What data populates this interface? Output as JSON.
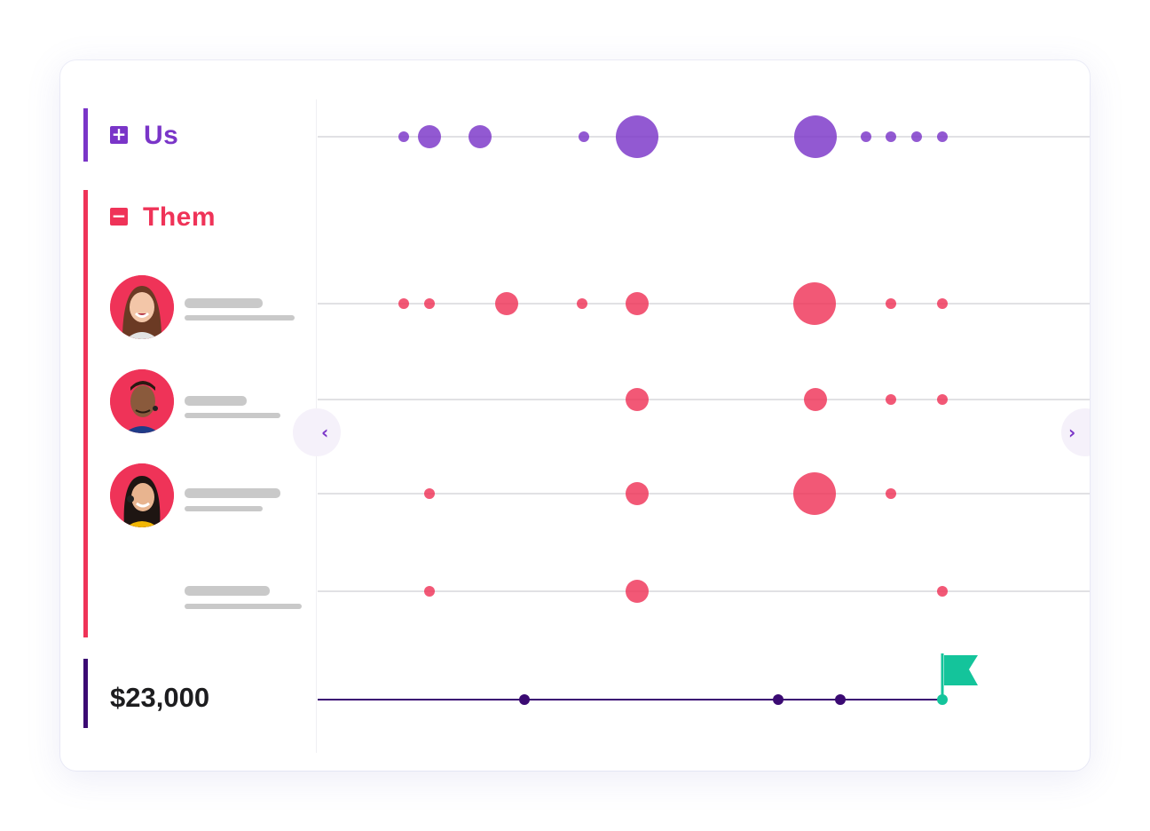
{
  "colors": {
    "us": "#7a35c8",
    "them": "#ef3358",
    "money": "#3b0a73",
    "goal": "#14c49b"
  },
  "groups": {
    "us": {
      "label": "Us",
      "toggle_icon": "plus-square-icon"
    },
    "them": {
      "label": "Them",
      "toggle_icon": "minus-square-icon"
    }
  },
  "amount": {
    "value": "$23,000"
  },
  "nav": {
    "prev_icon": "chevron-left-icon",
    "next_icon": "chevron-right-icon",
    "prev_glyph": "‹",
    "next_glyph": "›"
  },
  "rows": [
    {
      "group": "us",
      "events": [
        [
          455,
          "s"
        ],
        [
          484,
          "m"
        ],
        [
          541,
          "m"
        ],
        [
          658,
          "s"
        ],
        [
          718,
          "l"
        ],
        [
          919,
          "l"
        ],
        [
          976,
          "s"
        ],
        [
          1004,
          "s"
        ],
        [
          1033,
          "s"
        ],
        [
          1062,
          "s"
        ]
      ]
    },
    {
      "group": "them",
      "person": "person-1",
      "events": [
        [
          455,
          "s"
        ],
        [
          484,
          "s"
        ],
        [
          571,
          "m"
        ],
        [
          656,
          "s"
        ],
        [
          718,
          "m"
        ],
        [
          918,
          "l"
        ],
        [
          1004,
          "s"
        ],
        [
          1062,
          "s"
        ]
      ]
    },
    {
      "group": "them",
      "person": "person-2",
      "events": [
        [
          718,
          "m"
        ],
        [
          919,
          "m"
        ],
        [
          1004,
          "s"
        ],
        [
          1062,
          "s"
        ]
      ]
    },
    {
      "group": "them",
      "person": "person-3",
      "events": [
        [
          484,
          "s"
        ],
        [
          718,
          "m"
        ],
        [
          918,
          "l"
        ],
        [
          1004,
          "s"
        ]
      ]
    },
    {
      "group": "them",
      "person": "person-4",
      "events": [
        [
          484,
          "s"
        ],
        [
          718,
          "m"
        ],
        [
          1062,
          "s"
        ]
      ]
    }
  ],
  "milestones": [
    591,
    877,
    947
  ],
  "goal": 1062
}
